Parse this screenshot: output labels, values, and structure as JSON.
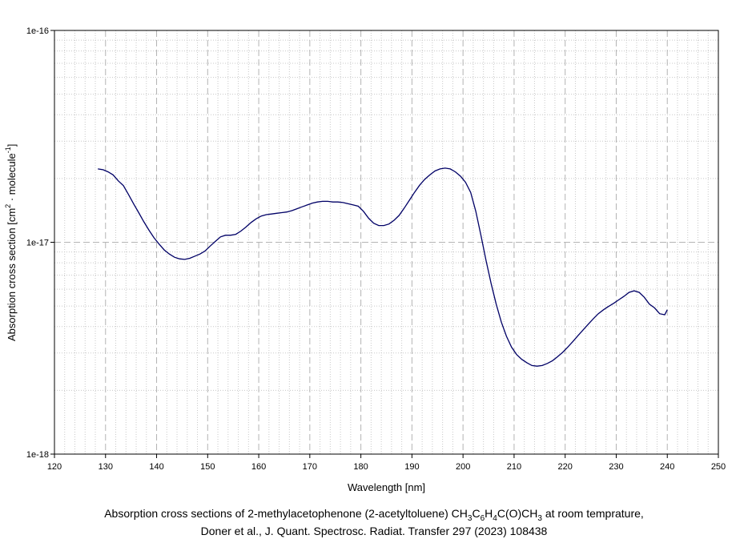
{
  "chart_data": {
    "type": "line",
    "xlabel": "Wavelength [nm]",
    "ylabel": {
      "main": "Absorption cross section [cm",
      "sup1": "2",
      "mid": " · molecule",
      "sup2": "-1",
      "end": "]"
    },
    "xlim": [
      120,
      250
    ],
    "ylim": [
      1e-18,
      1e-16
    ],
    "y_scale": "log",
    "x_ticks": [
      120,
      130,
      140,
      150,
      160,
      170,
      180,
      190,
      200,
      210,
      220,
      230,
      240,
      250
    ],
    "y_tick_labels": [
      "1e-16",
      "1e-17",
      "1e-18"
    ],
    "y_tick_values": [
      1e-16,
      1e-17,
      1e-18
    ],
    "grid": true,
    "line_color": "#000066",
    "series": [
      {
        "x": [
          128.5,
          129.5,
          130.5,
          131.5,
          132.5,
          133.5,
          134.5,
          135.5,
          136.5,
          137.5,
          138.5,
          139.5,
          140.5,
          141.5,
          142.5,
          143.5,
          144.5,
          145.5,
          146.5,
          147.5,
          148.5,
          149.5,
          150.5,
          151.5,
          152.5,
          153.5,
          154.5,
          155.5,
          156.5,
          157.5,
          158.5,
          159.5,
          160.5,
          161.5,
          162.5,
          163.5,
          164.5,
          165.5,
          166.5,
          167.5,
          168.5,
          169.5,
          170.5,
          171.5,
          172.5,
          173.5,
          174.5,
          175.5,
          176.5,
          177.5,
          178.5,
          179.5,
          180.5,
          181.5,
          182.5,
          183.5,
          184.5,
          185.5,
          186.5,
          187.5,
          188.5,
          189.5,
          190.5,
          191.5,
          192.5,
          193.5,
          194.5,
          195.5,
          196.5,
          197.5,
          198.5,
          199.5,
          200.5,
          201.5,
          202.5,
          203.5,
          204.5,
          205.5,
          206.5,
          207.5,
          208.5,
          209.5,
          210.5,
          211.5,
          212.5,
          213.5,
          214.5,
          215.5,
          216.5,
          217.5,
          218.5,
          219.5,
          220.5,
          221.5,
          222.5,
          223.5,
          224.5,
          225.5,
          226.5,
          227.5,
          228.5,
          229.5,
          230.5,
          231.5,
          232.5,
          233.5,
          234.5,
          235.5,
          236.5,
          237.5,
          238.5,
          239.5,
          240.0
        ],
        "y": [
          2.22e-17,
          2.2e-17,
          2.15e-17,
          2.08e-17,
          1.95e-17,
          1.85e-17,
          1.68e-17,
          1.52e-17,
          1.38e-17,
          1.25e-17,
          1.14e-17,
          1.05e-17,
          9.8e-18,
          9.2e-18,
          8.8e-18,
          8.5e-18,
          8.35e-18,
          8.3e-18,
          8.4e-18,
          8.6e-18,
          8.8e-18,
          9.1e-18,
          9.6e-18,
          1.01e-17,
          1.06e-17,
          1.08e-17,
          1.08e-17,
          1.09e-17,
          1.13e-17,
          1.18e-17,
          1.24e-17,
          1.29e-17,
          1.33e-17,
          1.35e-17,
          1.36e-17,
          1.37e-17,
          1.38e-17,
          1.39e-17,
          1.41e-17,
          1.44e-17,
          1.47e-17,
          1.5e-17,
          1.53e-17,
          1.55e-17,
          1.56e-17,
          1.56e-17,
          1.55e-17,
          1.55e-17,
          1.54e-17,
          1.52e-17,
          1.5e-17,
          1.48e-17,
          1.4e-17,
          1.3e-17,
          1.23e-17,
          1.2e-17,
          1.2e-17,
          1.22e-17,
          1.27e-17,
          1.34e-17,
          1.45e-17,
          1.58e-17,
          1.72e-17,
          1.86e-17,
          1.98e-17,
          2.08e-17,
          2.17e-17,
          2.22e-17,
          2.24e-17,
          2.22e-17,
          2.15e-17,
          2.05e-17,
          1.92e-17,
          1.72e-17,
          1.4e-17,
          1.08e-17,
          8.2e-18,
          6.4e-18,
          5.1e-18,
          4.2e-18,
          3.6e-18,
          3.2e-18,
          2.95e-18,
          2.8e-18,
          2.7e-18,
          2.62e-18,
          2.6e-18,
          2.62e-18,
          2.68e-18,
          2.76e-18,
          2.88e-18,
          3.02e-18,
          3.2e-18,
          3.4e-18,
          3.62e-18,
          3.85e-18,
          4.1e-18,
          4.35e-18,
          4.6e-18,
          4.8e-18,
          4.98e-18,
          5.15e-18,
          5.35e-18,
          5.55e-18,
          5.8e-18,
          5.9e-18,
          5.8e-18,
          5.5e-18,
          5.1e-18,
          4.9e-18,
          4.6e-18,
          4.55e-18,
          4.8e-18
        ]
      }
    ]
  },
  "caption": {
    "line1": {
      "a": "Absorption cross sections of 2-methylacetophenone (2-acetyltoluene) CH",
      "s1": "3",
      "b": "C",
      "s2": "6",
      "c": "H",
      "s3": "4",
      "d": "C(O)CH",
      "s4": "3",
      "e": " at room temprature,"
    },
    "line2": "Doner et al., J. Quant. Spectrosc. Radiat. Transfer 297 (2023) 108438"
  }
}
